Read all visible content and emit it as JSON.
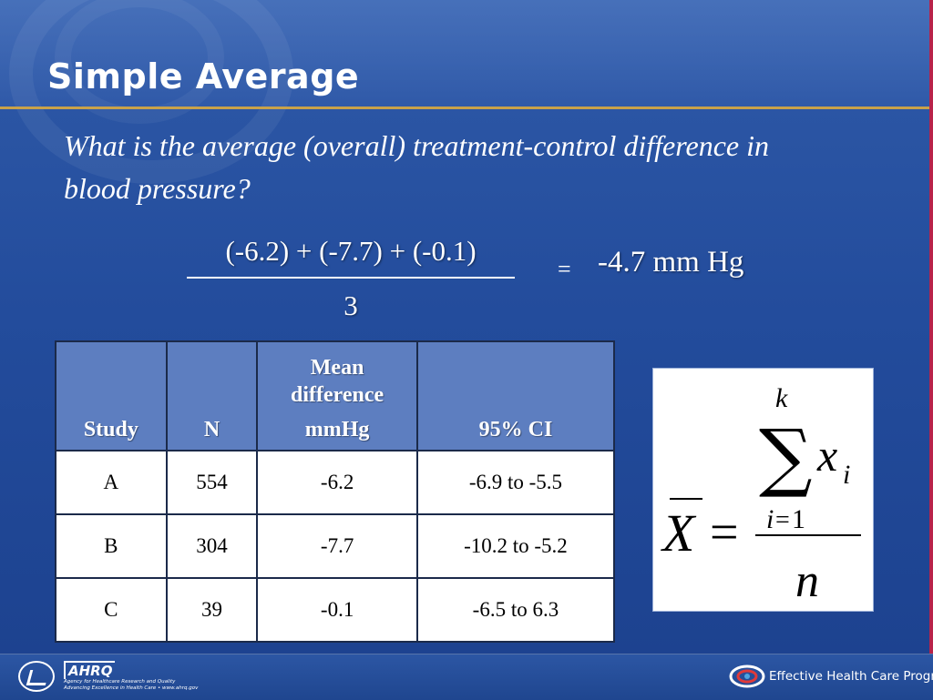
{
  "slide": {
    "title": "Simple Average",
    "question": "What is the average (overall) treatment-control difference in blood pressure?"
  },
  "equation": {
    "numerator": "(-6.2) + (-7.7) + (-0.1)",
    "denominator": "3",
    "equals": "=",
    "result": "-4.7 mm Hg"
  },
  "table": {
    "headers": {
      "study": "Study",
      "n": "N",
      "mean_line1": "Mean difference",
      "mean_line2": "mmHg",
      "ci": "95% CI"
    },
    "rows": [
      {
        "study": "A",
        "n": "554",
        "mean": "-6.2",
        "ci": "-6.9 to -5.5"
      },
      {
        "study": "B",
        "n": "304",
        "mean": "-7.7",
        "ci": "-10.2 to -5.2"
      },
      {
        "study": "C",
        "n": "39",
        "mean": "-0.1",
        "ci": "-6.5 to 6.3"
      }
    ]
  },
  "formula": {
    "lhs": "X",
    "equals": "=",
    "sum_symbol": "∑",
    "upper_limit": "k",
    "lower_index": "i",
    "lower_equals": "=",
    "lower_start": "1",
    "term": "x",
    "term_subscript": "i",
    "denominator": "n"
  },
  "footer": {
    "ahrq_name": "AHRQ",
    "ahrq_line1": "Agency for Healthcare Research and Quality",
    "ahrq_line2": "Advancing Excellence in Health Care • www.ahrq.gov",
    "program": "Effective Health Care Program"
  },
  "colors": {
    "background": "#234c9c",
    "header_rule": "#c9a24a",
    "table_header": "#5d7ec0",
    "accent_edge": "#b8234a"
  }
}
